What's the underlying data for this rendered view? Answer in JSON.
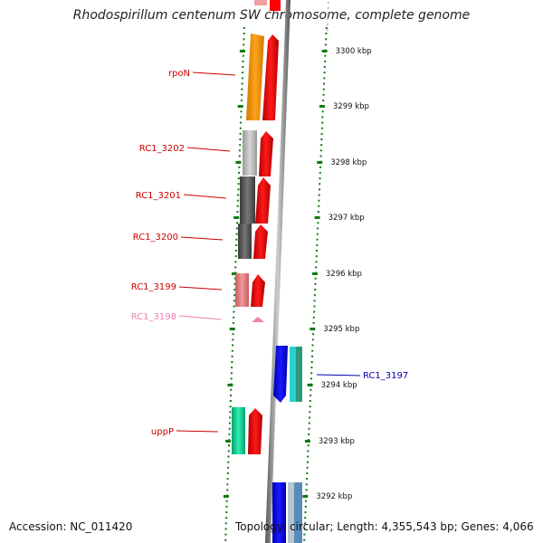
{
  "title": "Rhodospirillum centenum SW chromosome, complete genome",
  "footer": {
    "accession": "Accession: NC_011420",
    "topology": "Topology: circular; Length: 4,355,543 bp; Genes: 4,066"
  },
  "scale": {
    "unit": "kbp",
    "ticks": [
      {
        "label": "3300 kbp",
        "y": 56
      },
      {
        "label": "3299 kbp",
        "y": 117
      },
      {
        "label": "3298 kbp",
        "y": 179
      },
      {
        "label": "3297 kbp",
        "y": 240
      },
      {
        "label": "3296 kbp",
        "y": 302
      },
      {
        "label": "3295 kbp",
        "y": 363
      },
      {
        "label": "3294 kbp",
        "y": 425
      },
      {
        "label": "3293 kbp",
        "y": 487
      },
      {
        "label": "3292 kbp",
        "y": 548
      }
    ]
  },
  "genes": [
    {
      "label": "rpoN",
      "color": "#cc0000"
    },
    {
      "label": "RC1_3202",
      "color": "#cc0000"
    },
    {
      "label": "RC1_3201",
      "color": "#cc0000"
    },
    {
      "label": "RC1_3200",
      "color": "#cc0000"
    },
    {
      "label": "RC1_3199",
      "color": "#cc0000"
    },
    {
      "label": "RC1_3198",
      "color": "#f080b0"
    },
    {
      "label": "uppP",
      "color": "#cc0000"
    },
    {
      "label": "RC1_3197",
      "color": "#0000aa"
    }
  ],
  "colors": {
    "tick_green": "#117a11",
    "backbone": "#888888",
    "cds_red": "#ff0000",
    "orange": "#ff9900",
    "blue": "#0000ff"
  }
}
